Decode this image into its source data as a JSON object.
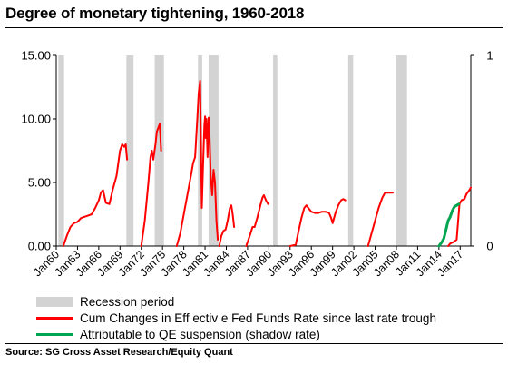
{
  "title": "Degree of monetary tightening, 1960-2018",
  "source": "Source: SG Cross Asset Research/Equity Quant",
  "colors": {
    "recession": "#d3d3d3",
    "fed_funds": "#ff0000",
    "qe": "#00a651"
  },
  "legend": [
    {
      "label": "Recession period",
      "kind": "rect",
      "color": "#d3d3d3"
    },
    {
      "label": "Cum Changes in Eff ectiv e Fed Funds Rate since last rate trough",
      "kind": "line",
      "color": "#ff0000"
    },
    {
      "label": "Attributable to QE suspension (shadow rate)",
      "kind": "line",
      "color": "#00a651"
    }
  ],
  "chart_data": {
    "type": "line",
    "xlim": [
      1960.0,
      2018.5
    ],
    "ylim": [
      0,
      15
    ],
    "y_ticks": [
      "0.00",
      "5.00",
      "10.00",
      "15.00"
    ],
    "y2_ticks": [
      "0",
      "1"
    ],
    "x_ticks": [
      {
        "label": "Jan60",
        "x": 1960.0
      },
      {
        "label": "Jan63",
        "x": 1963.0
      },
      {
        "label": "Jan66",
        "x": 1966.0
      },
      {
        "label": "Jan69",
        "x": 1969.0
      },
      {
        "label": "Jan72",
        "x": 1972.0
      },
      {
        "label": "Jan75",
        "x": 1975.0
      },
      {
        "label": "Jan78",
        "x": 1978.0
      },
      {
        "label": "Jan81",
        "x": 1981.0
      },
      {
        "label": "Jan84",
        "x": 1984.0
      },
      {
        "label": "Jan87",
        "x": 1987.0
      },
      {
        "label": "Jan90",
        "x": 1990.0
      },
      {
        "label": "Jan93",
        "x": 1993.0
      },
      {
        "label": "Jan96",
        "x": 1996.0
      },
      {
        "label": "Jan99",
        "x": 1999.0
      },
      {
        "label": "Jan02",
        "x": 2002.0
      },
      {
        "label": "Jan05",
        "x": 2005.0
      },
      {
        "label": "Jan08",
        "x": 2008.0
      },
      {
        "label": "Jan11",
        "x": 2011.0
      },
      {
        "label": "Jan14",
        "x": 2014.0
      },
      {
        "label": "Jan17",
        "x": 2017.0
      }
    ],
    "recessions": [
      [
        1960.3,
        1961.1
      ],
      [
        1969.9,
        1970.9
      ],
      [
        1973.9,
        1975.2
      ],
      [
        1980.0,
        1980.6
      ],
      [
        1981.5,
        1982.9
      ],
      [
        1990.6,
        1991.2
      ],
      [
        2001.2,
        2001.9
      ],
      [
        2007.9,
        2009.5
      ]
    ],
    "series": [
      {
        "name": "Cum Changes in Eff ectiv e Fed Funds Rate since last rate trough",
        "color": "#ff0000",
        "segments": [
          [
            [
              1961.0,
              0.0
            ],
            [
              1961.5,
              0.8
            ],
            [
              1962.0,
              1.5
            ],
            [
              1962.5,
              1.8
            ],
            [
              1963.0,
              1.9
            ],
            [
              1963.5,
              2.2
            ],
            [
              1964.0,
              2.3
            ],
            [
              1964.5,
              2.4
            ],
            [
              1965.0,
              2.5
            ],
            [
              1965.5,
              3.0
            ],
            [
              1966.0,
              3.6
            ],
            [
              1966.3,
              4.2
            ],
            [
              1966.6,
              4.4
            ],
            [
              1967.0,
              3.4
            ],
            [
              1967.5,
              3.3
            ],
            [
              1968.0,
              4.5
            ],
            [
              1968.5,
              5.5
            ],
            [
              1969.0,
              7.5
            ],
            [
              1969.3,
              8.0
            ],
            [
              1969.6,
              7.8
            ],
            [
              1969.8,
              8.0
            ],
            [
              1970.0,
              6.8
            ]
          ],
          [
            [
              1972.0,
              0.0
            ],
            [
              1972.5,
              2.0
            ],
            [
              1973.0,
              5.0
            ],
            [
              1973.3,
              7.0
            ],
            [
              1973.5,
              7.5
            ],
            [
              1973.7,
              6.8
            ],
            [
              1974.0,
              8.0
            ],
            [
              1974.2,
              9.0
            ],
            [
              1974.4,
              9.3
            ],
            [
              1974.6,
              9.6
            ],
            [
              1974.8,
              7.5
            ]
          ],
          [
            [
              1977.0,
              0.0
            ],
            [
              1977.5,
              1.0
            ],
            [
              1978.0,
              2.5
            ],
            [
              1978.5,
              4.0
            ],
            [
              1979.0,
              5.5
            ],
            [
              1979.3,
              6.5
            ],
            [
              1979.6,
              7.0
            ],
            [
              1979.9,
              10.0
            ],
            [
              1980.1,
              12.0
            ],
            [
              1980.3,
              13.0
            ],
            [
              1980.45,
              6.5
            ],
            [
              1980.55,
              3.0
            ],
            [
              1980.7,
              6.0
            ],
            [
              1980.9,
              9.5
            ],
            [
              1981.0,
              10.2
            ],
            [
              1981.1,
              8.5
            ],
            [
              1981.2,
              10.0
            ],
            [
              1981.35,
              7.0
            ],
            [
              1981.5,
              10.1
            ],
            [
              1981.65,
              8.5
            ],
            [
              1981.8,
              5.5
            ],
            [
              1982.0,
              4.0
            ],
            [
              1982.2,
              6.0
            ],
            [
              1982.4,
              5.0
            ],
            [
              1982.6,
              2.0
            ],
            [
              1982.8,
              0.5
            ]
          ],
          [
            [
              1983.0,
              0.0
            ],
            [
              1983.3,
              0.8
            ],
            [
              1983.6,
              1.2
            ],
            [
              1983.9,
              1.3
            ],
            [
              1984.2,
              2.0
            ],
            [
              1984.5,
              3.0
            ],
            [
              1984.7,
              3.2
            ],
            [
              1984.9,
              2.5
            ],
            [
              1985.1,
              1.5
            ]
          ],
          [
            [
              1986.8,
              0.0
            ],
            [
              1987.3,
              0.8
            ],
            [
              1987.7,
              1.5
            ],
            [
              1988.0,
              1.5
            ],
            [
              1988.4,
              2.3
            ],
            [
              1988.8,
              3.2
            ],
            [
              1989.1,
              3.8
            ],
            [
              1989.3,
              4.0
            ],
            [
              1989.6,
              3.6
            ],
            [
              1989.9,
              3.3
            ]
          ],
          [
            [
              1993.0,
              0.0
            ],
            [
              1993.8,
              0.1
            ],
            [
              1994.2,
              1.2
            ],
            [
              1994.6,
              2.2
            ],
            [
              1995.0,
              3.0
            ],
            [
              1995.3,
              3.2
            ],
            [
              1995.7,
              2.9
            ],
            [
              1996.0,
              2.7
            ],
            [
              1996.5,
              2.6
            ],
            [
              1997.0,
              2.6
            ],
            [
              1997.5,
              2.7
            ],
            [
              1998.0,
              2.7
            ],
            [
              1998.5,
              2.6
            ],
            [
              1998.8,
              2.2
            ],
            [
              1999.0,
              1.8
            ],
            [
              1999.4,
              2.6
            ],
            [
              1999.8,
              3.2
            ],
            [
              2000.2,
              3.6
            ],
            [
              2000.5,
              3.7
            ],
            [
              2000.8,
              3.6
            ]
          ],
          [
            [
              2004.0,
              0.0
            ],
            [
              2004.5,
              1.0
            ],
            [
              2005.0,
              2.0
            ],
            [
              2005.5,
              3.0
            ],
            [
              2006.0,
              3.8
            ],
            [
              2006.4,
              4.2
            ],
            [
              2007.0,
              4.2
            ],
            [
              2007.5,
              4.2
            ]
          ],
          [
            [
              2015.3,
              0.0
            ],
            [
              2015.6,
              0.2
            ],
            [
              2016.0,
              0.3
            ],
            [
              2016.5,
              0.5
            ],
            [
              2016.9,
              3.3
            ],
            [
              2017.2,
              3.6
            ],
            [
              2017.6,
              3.7
            ],
            [
              2017.9,
              4.1
            ],
            [
              2018.3,
              4.4
            ],
            [
              2018.5,
              4.6
            ]
          ]
        ]
      },
      {
        "name": "Attributable to QE suspension (shadow rate)",
        "color": "#00a651",
        "segments": [
          [
            [
              2014.0,
              0.0
            ],
            [
              2014.4,
              0.3
            ],
            [
              2014.7,
              0.6
            ],
            [
              2015.0,
              1.3
            ],
            [
              2015.3,
              2.0
            ],
            [
              2015.6,
              2.3
            ],
            [
              2015.9,
              2.8
            ],
            [
              2016.2,
              3.1
            ],
            [
              2016.5,
              3.2
            ],
            [
              2016.8,
              3.3
            ]
          ]
        ]
      }
    ]
  }
}
